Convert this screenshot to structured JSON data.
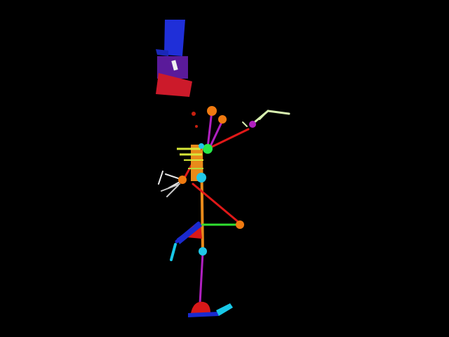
{
  "scene": {
    "background": "#000000",
    "subject": "3d-pose-skeleton-render",
    "colors": {
      "head_block_top": "#1f2fd8",
      "head_block_mid": "#5a1a9a",
      "head_block_bottom": "#cc1a2a",
      "spine": "#e88a1a",
      "bone_red": "#e01818",
      "bone_magenta": "#b020c0",
      "bone_green": "#30e030",
      "bone_yellow": "#d8e838",
      "bone_blue": "#1a2ad0",
      "bone_cyan": "#18c8e8",
      "joint_orange": "#f07a10",
      "joint_cyan": "#20c8e8",
      "joint_green": "#28e848",
      "foot_red": "#d81818",
      "hand_white": "#e8e8e8",
      "hand_pale": "#d8f0b0"
    }
  }
}
